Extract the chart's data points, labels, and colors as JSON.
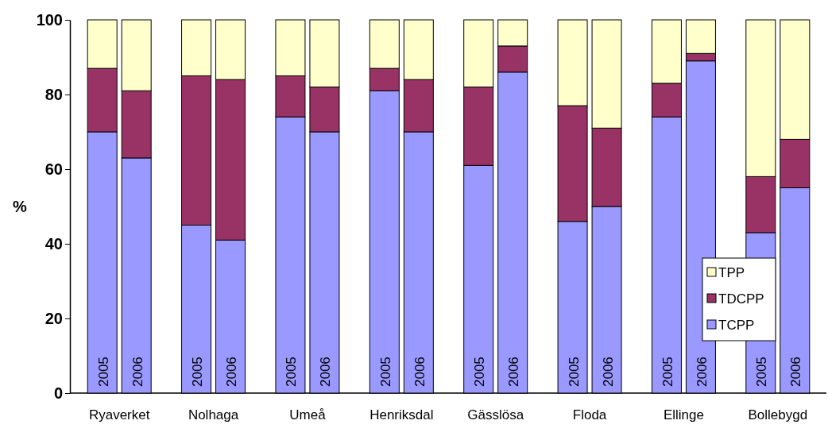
{
  "chart_data": {
    "type": "bar",
    "stacked": true,
    "ylabel": "%",
    "categories": [
      "2005",
      "2006",
      "2005",
      "2006",
      "2005",
      "2006",
      "2005",
      "2006",
      "2005",
      "2006",
      "2005",
      "2006",
      "2005",
      "2006",
      "2005",
      "2006"
    ],
    "series": [
      {
        "name": "TCPP",
        "color": "#9999ff",
        "values": [
          70,
          63,
          45,
          41,
          74,
          70,
          81,
          70,
          61,
          86,
          46,
          50,
          74,
          89,
          43,
          55
        ]
      },
      {
        "name": "TDCPP",
        "color": "#993366",
        "values": [
          17,
          18,
          40,
          43,
          11,
          12,
          6,
          14,
          21,
          7,
          31,
          21,
          9,
          2,
          15,
          13
        ]
      },
      {
        "name": "TPP",
        "color": "#ffffcc",
        "values": [
          13,
          19,
          15,
          16,
          15,
          18,
          13,
          16,
          18,
          7,
          23,
          29,
          17,
          9,
          42,
          32
        ]
      }
    ],
    "annotations": [
      "Ryaverket",
      "Nolhaga",
      "Umeå",
      "Henriksdal",
      "Gässlösa",
      "Floda",
      "Ellinge",
      "Bollebygd"
    ],
    "ylim": [
      0,
      100
    ],
    "yticks": [
      0,
      20,
      40,
      60,
      80,
      100
    ],
    "legend": "right"
  }
}
